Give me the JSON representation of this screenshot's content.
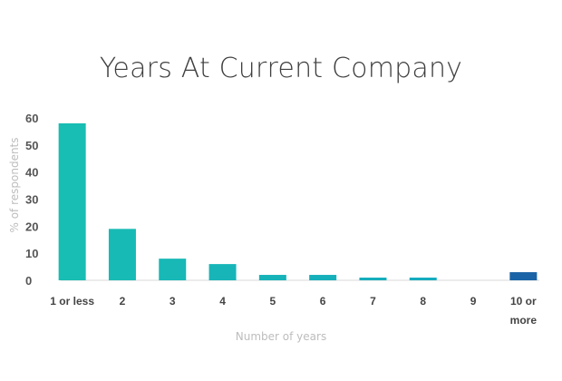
{
  "chart_data": {
    "type": "bar",
    "title": "Years At Current Company",
    "xlabel": "Number of years",
    "ylabel": "% of respondents",
    "categories": [
      "1 or less",
      "2",
      "3",
      "4",
      "5",
      "6",
      "7",
      "8",
      "9",
      "10 or\nmore"
    ],
    "values": [
      58,
      19,
      8,
      6,
      2,
      2,
      1,
      1,
      0,
      3
    ],
    "ylim": [
      0,
      60
    ],
    "yticks": [
      0,
      10,
      20,
      30,
      40,
      50,
      60
    ],
    "grid": false,
    "legend": "none",
    "colors": {
      "bar_teal": "#18bdb3",
      "bar_mid": "#14a8bf",
      "bar_last": "#1a63a6",
      "axis_line": "#d8d8d8"
    }
  }
}
